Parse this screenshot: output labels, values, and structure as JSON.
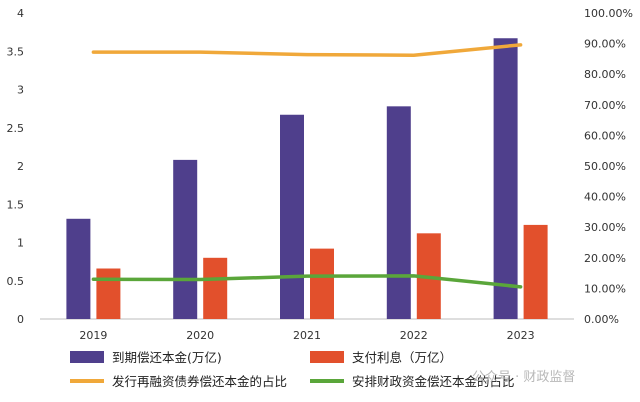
{
  "chart_data": {
    "type": "bar",
    "categories": [
      "2019",
      "2020",
      "2021",
      "2022",
      "2023"
    ],
    "series": [
      {
        "name": "到期偿还本金(万亿)",
        "kind": "bar",
        "axis": "left",
        "color": "#4f3f8c",
        "values": [
          1.31,
          2.08,
          2.67,
          2.78,
          3.67
        ]
      },
      {
        "name": "支付利息（万亿）",
        "kind": "bar",
        "axis": "left",
        "color": "#e2502c",
        "values": [
          0.66,
          0.8,
          0.92,
          1.12,
          1.23
        ]
      },
      {
        "name": "发行再融资债券偿还本金的占比",
        "kind": "line",
        "axis": "right",
        "color": "#f0a83a",
        "values": [
          0.872,
          0.872,
          0.864,
          0.862,
          0.896
        ]
      },
      {
        "name": "安排财政资金偿还本金的占比",
        "kind": "line",
        "axis": "right",
        "color": "#5aa63a",
        "values": [
          0.13,
          0.129,
          0.14,
          0.141,
          0.105
        ]
      }
    ],
    "y_left": {
      "min": 0,
      "max": 4,
      "ticks": [
        "0",
        "0.5",
        "1",
        "1.5",
        "2",
        "2.5",
        "3",
        "3.5",
        "4"
      ]
    },
    "y_right": {
      "min": 0,
      "max": 1,
      "ticks": [
        "0.00%",
        "10.00%",
        "20.00%",
        "30.00%",
        "40.00%",
        "50.00%",
        "60.00%",
        "70.00%",
        "80.00%",
        "90.00%",
        "100.00%"
      ]
    },
    "grid": false,
    "legend_position": "bottom"
  },
  "watermark": "公众号 · 财政监督"
}
